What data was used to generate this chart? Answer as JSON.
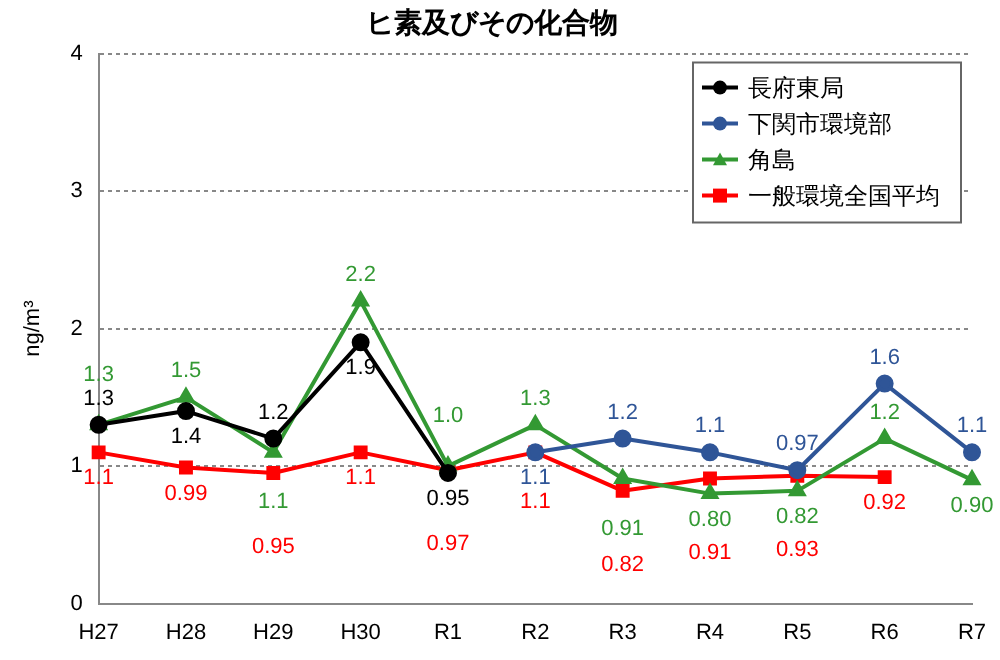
{
  "chart_data": {
    "type": "line",
    "title": "ヒ素及びその化合物",
    "ylabel": "ng/m³",
    "categories": [
      "H27",
      "H28",
      "H29",
      "H30",
      "R1",
      "R2",
      "R3",
      "R4",
      "R5",
      "R6",
      "R7"
    ],
    "series": [
      {
        "name": "長府東局",
        "color": "#000000",
        "marker": "circle",
        "values": [
          1.3,
          1.4,
          1.2,
          1.9,
          0.95,
          null,
          null,
          null,
          null,
          null,
          null
        ],
        "value_labels": [
          "1.3",
          "1.4",
          "1.2",
          "1.9",
          "0.95",
          null,
          null,
          null,
          null,
          null,
          null
        ]
      },
      {
        "name": "下関市環境部",
        "color": "#2f5597",
        "marker": "circle",
        "values": [
          null,
          null,
          null,
          null,
          null,
          1.1,
          1.2,
          1.1,
          0.97,
          1.6,
          1.1
        ],
        "value_labels": [
          null,
          null,
          null,
          null,
          null,
          "1.1",
          "1.2",
          "1.1",
          "0.97",
          "1.6",
          "1.1"
        ]
      },
      {
        "name": "角島",
        "color": "#339933",
        "marker": "triangle",
        "values": [
          1.3,
          1.5,
          1.1,
          2.2,
          1.0,
          1.3,
          0.91,
          0.8,
          0.82,
          1.2,
          0.9
        ],
        "value_labels": [
          "1.3",
          "1.5",
          "1.1",
          "2.2",
          "1.0",
          "1.3",
          "0.91",
          "0.80",
          "0.82",
          "1.2",
          "0.90"
        ]
      },
      {
        "name": "一般環境全国平均",
        "color": "#ff0000",
        "marker": "square",
        "values": [
          1.1,
          0.99,
          0.95,
          1.1,
          0.97,
          1.1,
          0.82,
          0.91,
          0.93,
          0.92,
          null
        ],
        "value_labels": [
          "1.1",
          "0.99",
          "0.95",
          "1.1",
          "0.97",
          "1.1",
          "0.82",
          "0.91",
          "0.93",
          "0.92",
          null
        ]
      }
    ],
    "ylim": [
      0,
      4
    ],
    "yticks": [
      0,
      1,
      2,
      3,
      4
    ],
    "grid": "y",
    "legend": "top right"
  }
}
